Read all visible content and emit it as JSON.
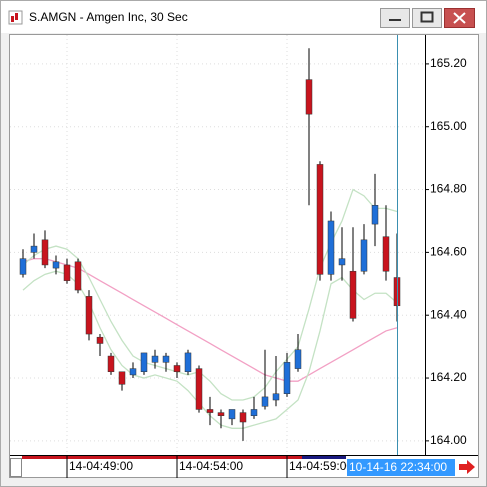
{
  "chart_data": {
    "type": "candlestick",
    "title": "S.AMGN - Amgen Inc, 30 Sec",
    "categories": [
      null,
      null,
      null,
      null,
      "14-04:49:00",
      null,
      null,
      null,
      null,
      null,
      null,
      null,
      null,
      null,
      "14-04:54:00",
      null,
      null,
      null,
      null,
      null,
      null,
      null,
      null,
      null,
      "14-04:59:00",
      null,
      null,
      null,
      null,
      null,
      null,
      null,
      null,
      null,
      null
    ],
    "cursor_label": "10-14-16 22:34:00",
    "open": [
      164.53,
      164.6,
      164.64,
      164.55,
      164.56,
      164.57,
      164.46,
      164.33,
      164.27,
      164.22,
      164.21,
      164.22,
      164.25,
      164.25,
      164.24,
      164.22,
      164.23,
      164.1,
      164.09,
      164.07,
      164.09,
      164.08,
      164.11,
      164.13,
      164.15,
      164.23,
      165.15,
      164.88,
      164.53,
      164.56,
      164.54,
      164.54,
      164.69,
      164.65,
      164.52
    ],
    "high": [
      164.61,
      164.66,
      164.67,
      164.59,
      164.58,
      164.58,
      164.48,
      164.34,
      164.28,
      164.22,
      164.25,
      164.28,
      164.29,
      164.28,
      164.25,
      164.29,
      164.24,
      164.14,
      164.1,
      164.1,
      164.1,
      164.14,
      164.29,
      164.27,
      164.28,
      164.34,
      165.25,
      164.89,
      164.73,
      164.68,
      164.68,
      164.69,
      164.85,
      164.75,
      164.66
    ],
    "low": [
      164.52,
      164.58,
      164.55,
      164.53,
      164.5,
      164.47,
      164.32,
      164.27,
      164.21,
      164.16,
      164.2,
      164.21,
      164.23,
      164.22,
      164.2,
      164.21,
      164.09,
      164.05,
      164.04,
      164.05,
      164.0,
      164.07,
      164.1,
      164.11,
      164.14,
      164.22,
      164.75,
      164.51,
      164.51,
      164.51,
      164.38,
      164.53,
      164.62,
      164.51,
      164.38
    ],
    "close": [
      164.58,
      164.62,
      164.56,
      164.57,
      164.51,
      164.48,
      164.34,
      164.31,
      164.22,
      164.18,
      164.23,
      164.28,
      164.27,
      164.27,
      164.22,
      164.28,
      164.1,
      164.09,
      164.08,
      164.1,
      164.06,
      164.1,
      164.14,
      164.15,
      164.25,
      164.29,
      165.04,
      164.53,
      164.7,
      164.58,
      164.39,
      164.64,
      164.75,
      164.54,
      164.43
    ],
    "up_color": "#1f6fd8",
    "down_color": "#c8141e",
    "series": [
      {
        "color": "#f2a0c4",
        "values": [
          164.57,
          164.58,
          164.58,
          164.57,
          164.56,
          164.55,
          164.53,
          164.51,
          164.49,
          164.47,
          164.45,
          164.43,
          164.41,
          164.39,
          164.37,
          164.35,
          164.33,
          164.31,
          164.29,
          164.27,
          164.25,
          164.23,
          164.21,
          164.2,
          164.19,
          164.19,
          164.21,
          164.23,
          164.25,
          164.27,
          164.29,
          164.31,
          164.33,
          164.35,
          164.36
        ]
      },
      {
        "color": "#c4e2c4",
        "values": [
          164.56,
          164.59,
          164.61,
          164.62,
          164.61,
          164.58,
          164.52,
          164.45,
          164.38,
          164.32,
          164.27,
          164.25,
          164.24,
          164.23,
          164.22,
          164.21,
          164.22,
          164.19,
          164.15,
          164.13,
          164.13,
          164.14,
          164.17,
          164.22,
          164.26,
          164.3,
          164.42,
          164.55,
          164.63,
          164.7,
          164.8,
          164.78,
          164.74,
          164.74,
          164.73
        ]
      },
      {
        "color": "#c4e2c4",
        "values": [
          164.48,
          164.51,
          164.53,
          164.54,
          164.53,
          164.5,
          164.44,
          164.36,
          164.29,
          164.24,
          164.21,
          164.2,
          164.21,
          164.2,
          164.19,
          164.16,
          164.12,
          164.08,
          164.05,
          164.04,
          164.04,
          164.05,
          164.06,
          164.07,
          164.1,
          164.13,
          164.22,
          164.35,
          164.5,
          164.52,
          164.48,
          164.45,
          164.47,
          164.47,
          164.44
        ]
      }
    ],
    "ylim": [
      163.955,
      165.292
    ],
    "yticks": [
      {
        "value": 164.0,
        "label": "164.00"
      },
      {
        "value": 164.2,
        "label": "164.20"
      },
      {
        "value": 164.4,
        "label": "164.40"
      },
      {
        "value": 164.6,
        "label": "164.60"
      },
      {
        "value": 164.8,
        "label": "164.80"
      },
      {
        "value": 165.0,
        "label": "165.00"
      },
      {
        "value": 165.2,
        "label": "165.20"
      }
    ],
    "grid": true
  }
}
